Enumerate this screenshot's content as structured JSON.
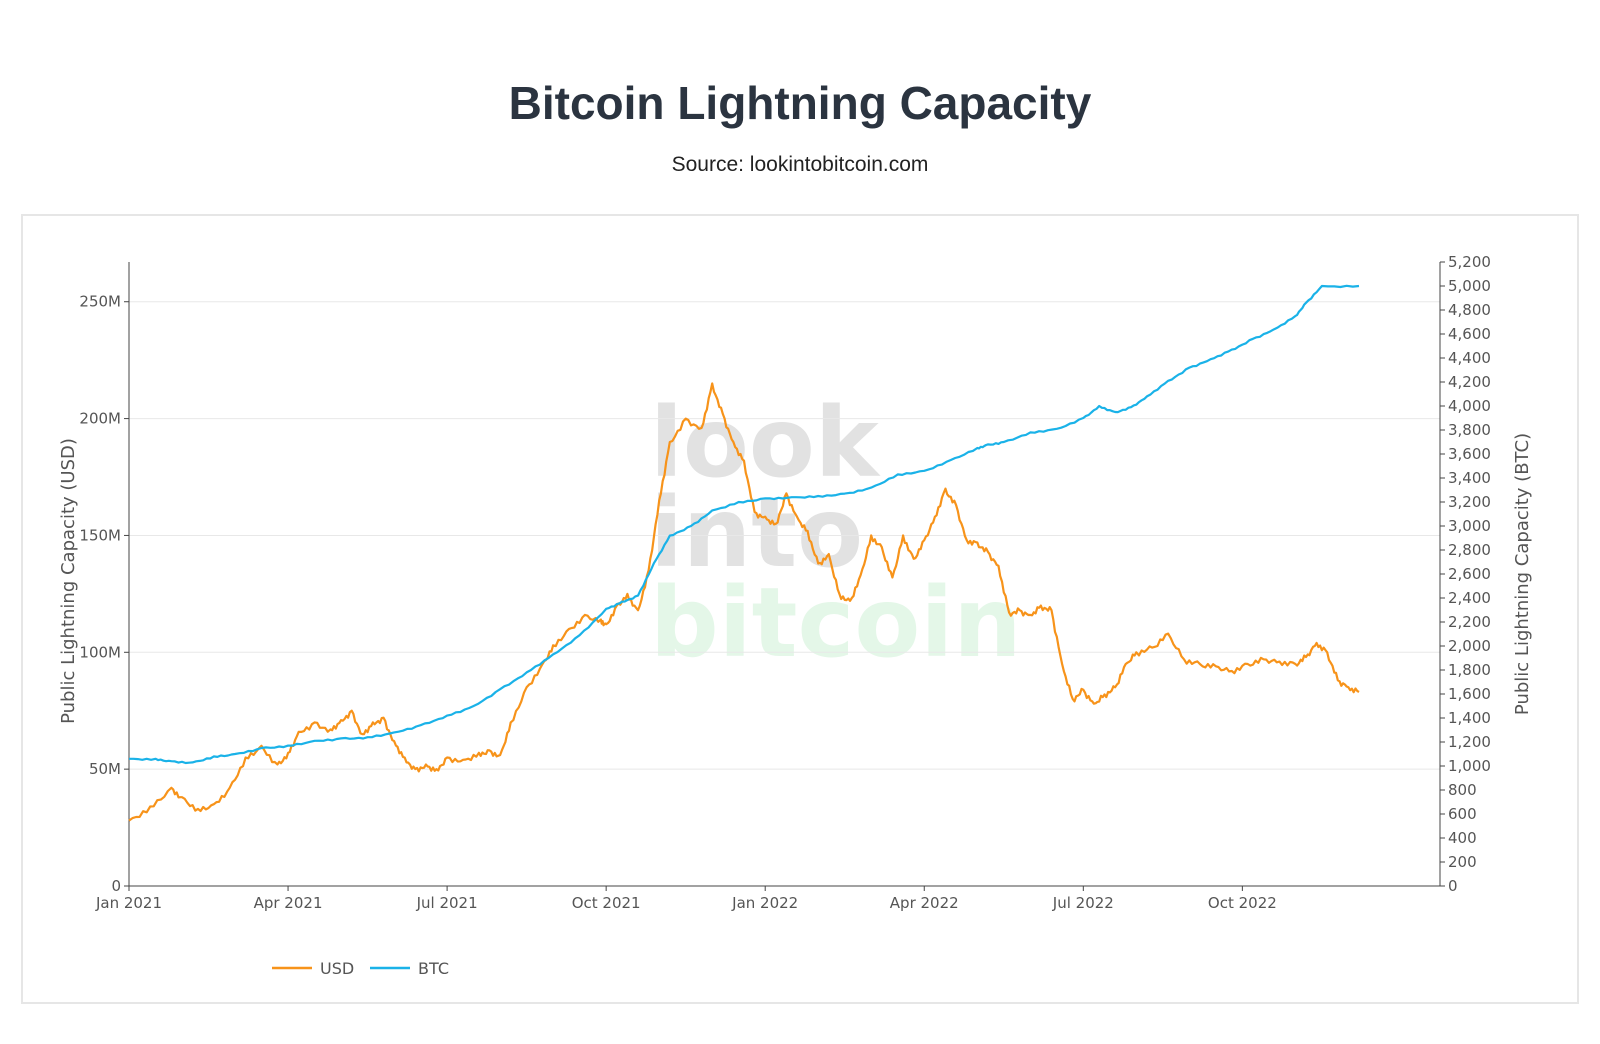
{
  "header": {
    "title": "Bitcoin Lightning Capacity",
    "subtitle": "Source: lookintobitcoin.com"
  },
  "watermark": {
    "line1": "look",
    "line2": "into",
    "line3": "bitcoin",
    "line1_color": "#e2e2e2",
    "line3_color": "#e4f7e8"
  },
  "chart_data": {
    "type": "line",
    "title": "Bitcoin Lightning Capacity",
    "subtitle": "Source: lookintobitcoin.com",
    "xlabel": "",
    "ylabel_left": "Public Lightning Capacity (USD)",
    "ylabel_right": "Public Lightning Capacity (BTC)",
    "x_ticks": [
      "Jan 2021",
      "Apr 2021",
      "Jul 2021",
      "Oct 2021",
      "Jan 2022",
      "Apr 2022",
      "Jul 2022",
      "Oct 2022"
    ],
    "y_left_ticks": [
      "0",
      "50M",
      "100M",
      "150M",
      "200M",
      "250M"
    ],
    "y_left_tick_values": [
      0,
      50,
      100,
      150,
      200,
      250
    ],
    "y_left_range_millions": [
      0,
      267
    ],
    "y_right_ticks": [
      "0",
      "200",
      "400",
      "600",
      "800",
      "1,000",
      "1,200",
      "1,400",
      "1,600",
      "1,800",
      "2,000",
      "2,200",
      "2,400",
      "2,600",
      "2,800",
      "3,000",
      "3,200",
      "3,400",
      "3,600",
      "3,800",
      "4,000",
      "4,200",
      "4,400",
      "4,600",
      "4,800",
      "5,000",
      "5,200"
    ],
    "y_right_range": [
      0,
      5200
    ],
    "x_range_months": [
      0,
      23.2
    ],
    "legend_position": "bottom-left",
    "grid": true,
    "series": [
      {
        "name": "USD",
        "axis": "left",
        "unit": "millions USD",
        "color": "#f7931a",
        "x_months": [
          0,
          0.4,
          0.8,
          1.0,
          1.3,
          1.6,
          1.9,
          2.2,
          2.5,
          2.8,
          3.0,
          3.2,
          3.5,
          3.8,
          4.0,
          4.2,
          4.4,
          4.6,
          4.8,
          5.0,
          5.2,
          5.4,
          5.6,
          5.8,
          6.0,
          6.3,
          6.6,
          6.8,
          7.0,
          7.2,
          7.5,
          7.8,
          8.0,
          8.3,
          8.6,
          8.9,
          9.0,
          9.2,
          9.4,
          9.6,
          9.8,
          10.0,
          10.2,
          10.5,
          10.8,
          11.0,
          11.2,
          11.4,
          11.6,
          11.8,
          12.0,
          12.2,
          12.4,
          12.6,
          12.8,
          13.0,
          13.2,
          13.4,
          13.6,
          13.8,
          14.0,
          14.2,
          14.4,
          14.6,
          14.8,
          15.0,
          15.2,
          15.4,
          15.6,
          15.8,
          16.0,
          16.2,
          16.4,
          16.6,
          16.8,
          17.0,
          17.2,
          17.4,
          17.6,
          17.8,
          18.0,
          18.2,
          18.4,
          18.6,
          18.8,
          19.0,
          19.3,
          19.6,
          19.9,
          20.2,
          20.5,
          20.8,
          21.1,
          21.4,
          21.7,
          22.0,
          22.2,
          22.4,
          22.6,
          22.8,
          23.0,
          23.2
        ],
        "values": [
          28,
          34,
          42,
          38,
          33,
          35,
          42,
          55,
          60,
          52,
          57,
          66,
          70,
          67,
          71,
          75,
          65,
          70,
          72,
          62,
          55,
          50,
          52,
          50,
          55,
          54,
          57,
          58,
          56,
          70,
          85,
          95,
          103,
          110,
          116,
          114,
          112,
          120,
          125,
          118,
          135,
          165,
          190,
          200,
          196,
          215,
          202,
          190,
          182,
          160,
          158,
          155,
          168,
          158,
          152,
          138,
          142,
          125,
          122,
          133,
          150,
          145,
          132,
          150,
          140,
          148,
          158,
          170,
          163,
          148,
          147,
          143,
          137,
          117,
          118,
          116,
          120,
          118,
          95,
          80,
          84,
          78,
          82,
          85,
          95,
          100,
          102,
          108,
          97,
          95,
          94,
          92,
          95,
          97,
          96,
          95,
          98,
          104,
          100,
          88,
          85,
          83
        ]
      },
      {
        "name": "BTC",
        "axis": "right",
        "unit": "BTC",
        "color": "#1ab2e8",
        "x_months": [
          0,
          0.5,
          0.8,
          1.2,
          1.6,
          2.0,
          2.5,
          3.0,
          3.5,
          4.0,
          4.5,
          5.0,
          5.5,
          6.0,
          6.5,
          7.0,
          7.5,
          8.0,
          8.5,
          9.0,
          9.3,
          9.6,
          9.9,
          10.2,
          10.6,
          11.0,
          11.5,
          12.0,
          12.5,
          13.0,
          13.5,
          14.0,
          14.5,
          15.0,
          15.5,
          16.0,
          16.2,
          16.5,
          17.0,
          17.5,
          18.0,
          18.3,
          18.6,
          18.9,
          19.2,
          19.6,
          20.0,
          20.4,
          20.8,
          21.2,
          21.6,
          22.0,
          22.2,
          22.5,
          23.2
        ],
        "values": [
          1060,
          1060,
          1040,
          1030,
          1080,
          1100,
          1150,
          1170,
          1210,
          1230,
          1240,
          1280,
          1340,
          1420,
          1500,
          1640,
          1780,
          1930,
          2090,
          2310,
          2370,
          2420,
          2690,
          2920,
          3000,
          3130,
          3200,
          3230,
          3240,
          3250,
          3270,
          3320,
          3430,
          3460,
          3550,
          3650,
          3680,
          3700,
          3780,
          3810,
          3900,
          4000,
          3950,
          3990,
          4080,
          4210,
          4320,
          4390,
          4470,
          4560,
          4640,
          4750,
          4860,
          5000,
          5000
        ]
      }
    ]
  }
}
